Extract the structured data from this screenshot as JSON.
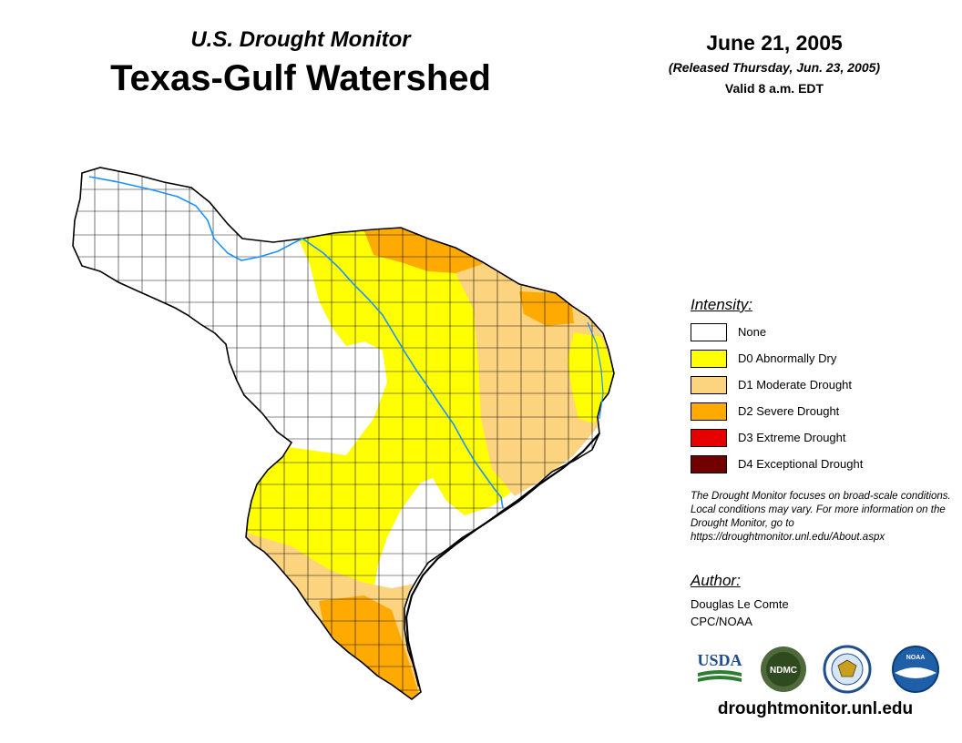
{
  "header": {
    "subtitle": "U.S. Drought Monitor",
    "title": "Texas-Gulf Watershed",
    "date": "June 21, 2005",
    "released": "(Released Thursday, Jun. 23, 2005)",
    "valid": "Valid 8 a.m. EDT"
  },
  "legend": {
    "heading": "Intensity:",
    "items": [
      {
        "label": "None",
        "color": "#ffffff"
      },
      {
        "label": "D0 Abnormally Dry",
        "color": "#ffff00"
      },
      {
        "label": "D1 Moderate Drought",
        "color": "#fcd37f"
      },
      {
        "label": "D2 Severe Drought",
        "color": "#ffaa00"
      },
      {
        "label": "D3 Extreme Drought",
        "color": "#e60000"
      },
      {
        "label": "D4 Exceptional Drought",
        "color": "#730000"
      }
    ]
  },
  "note": "The Drought Monitor focuses on broad-scale conditions. Local conditions may vary. For more information on the Drought Monitor, go to https://droughtmonitor.unl.edu/About.aspx",
  "author": {
    "heading": "Author:",
    "name": "Douglas Le Comte",
    "org": "CPC/NOAA"
  },
  "logos": [
    {
      "name": "usda-logo",
      "text": "USDA"
    },
    {
      "name": "ndmc-logo",
      "text": "NDMC"
    },
    {
      "name": "doc-seal-logo"
    },
    {
      "name": "noaa-logo",
      "text": "NOAA"
    }
  ],
  "website": "droughtmonitor.unl.edu",
  "colors": {
    "river": "#1e90ff",
    "county_line": "#000000"
  }
}
